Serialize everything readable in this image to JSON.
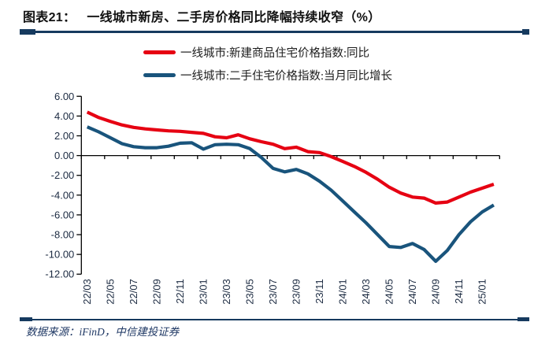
{
  "header": {
    "tag": "图表21：",
    "title": "一线城市新房、二手房价格同比降幅持续收窄（%）"
  },
  "footer": {
    "source_label": "数据来源：iFinD，中信建投证券"
  },
  "colors": {
    "separator_navy": "#163A5F",
    "axis_black": "#000000",
    "axis_label": "#1b2a41",
    "series_red": "#E60012",
    "series_blue": "#19547C"
  },
  "chart_data": {
    "type": "line",
    "title": "一线城市新房、二手房价格同比降幅持续收窄（%）",
    "xlabel": "",
    "ylabel": "",
    "ylim": [
      -12,
      6
    ],
    "y_tick_step": 2,
    "y_tick_labels": [
      "6.00",
      "4.00",
      "2.00",
      "0.00",
      "-2.00",
      "-4.00",
      "-6.00",
      "-8.00",
      "-10.00",
      "-12.00"
    ],
    "grid": "off",
    "legend_position": "top",
    "x_label_rotation": 90,
    "x_label_interval": 2,
    "categories": [
      "22/03",
      "22/04",
      "22/05",
      "22/06",
      "22/07",
      "22/08",
      "22/09",
      "22/10",
      "22/11",
      "22/12",
      "23/01",
      "23/02",
      "23/03",
      "23/04",
      "23/05",
      "23/06",
      "23/07",
      "23/08",
      "23/09",
      "23/10",
      "23/11",
      "23/12",
      "24/01",
      "24/02",
      "24/03",
      "24/04",
      "24/05",
      "24/06",
      "24/07",
      "24/08",
      "24/09",
      "24/10",
      "24/11",
      "24/12",
      "25/01",
      "25/02"
    ],
    "series": [
      {
        "name": "一线城市:新建商品住宅价格指数:同比",
        "color": "#E60012",
        "values": [
          4.4,
          3.85,
          3.45,
          3.1,
          2.85,
          2.7,
          2.6,
          2.5,
          2.45,
          2.35,
          2.25,
          1.9,
          1.8,
          2.1,
          1.7,
          1.4,
          1.15,
          0.7,
          0.85,
          0.4,
          0.3,
          -0.1,
          -0.6,
          -1.1,
          -1.7,
          -2.4,
          -3.2,
          -3.8,
          -4.2,
          -4.3,
          -4.8,
          -4.7,
          -4.2,
          -3.7,
          -3.3,
          -2.9
        ]
      },
      {
        "name": "一线城市:二手住宅价格指数:当月同比增长",
        "color": "#19547C",
        "values": [
          2.9,
          2.4,
          1.8,
          1.2,
          0.9,
          0.8,
          0.8,
          0.95,
          1.25,
          1.3,
          0.65,
          1.1,
          1.15,
          1.1,
          0.7,
          -0.2,
          -1.3,
          -1.65,
          -1.4,
          -1.85,
          -2.6,
          -3.5,
          -4.6,
          -5.7,
          -6.8,
          -8.0,
          -9.2,
          -9.3,
          -8.9,
          -9.5,
          -10.7,
          -9.6,
          -8.0,
          -6.7,
          -5.7,
          -5.0
        ]
      }
    ]
  }
}
